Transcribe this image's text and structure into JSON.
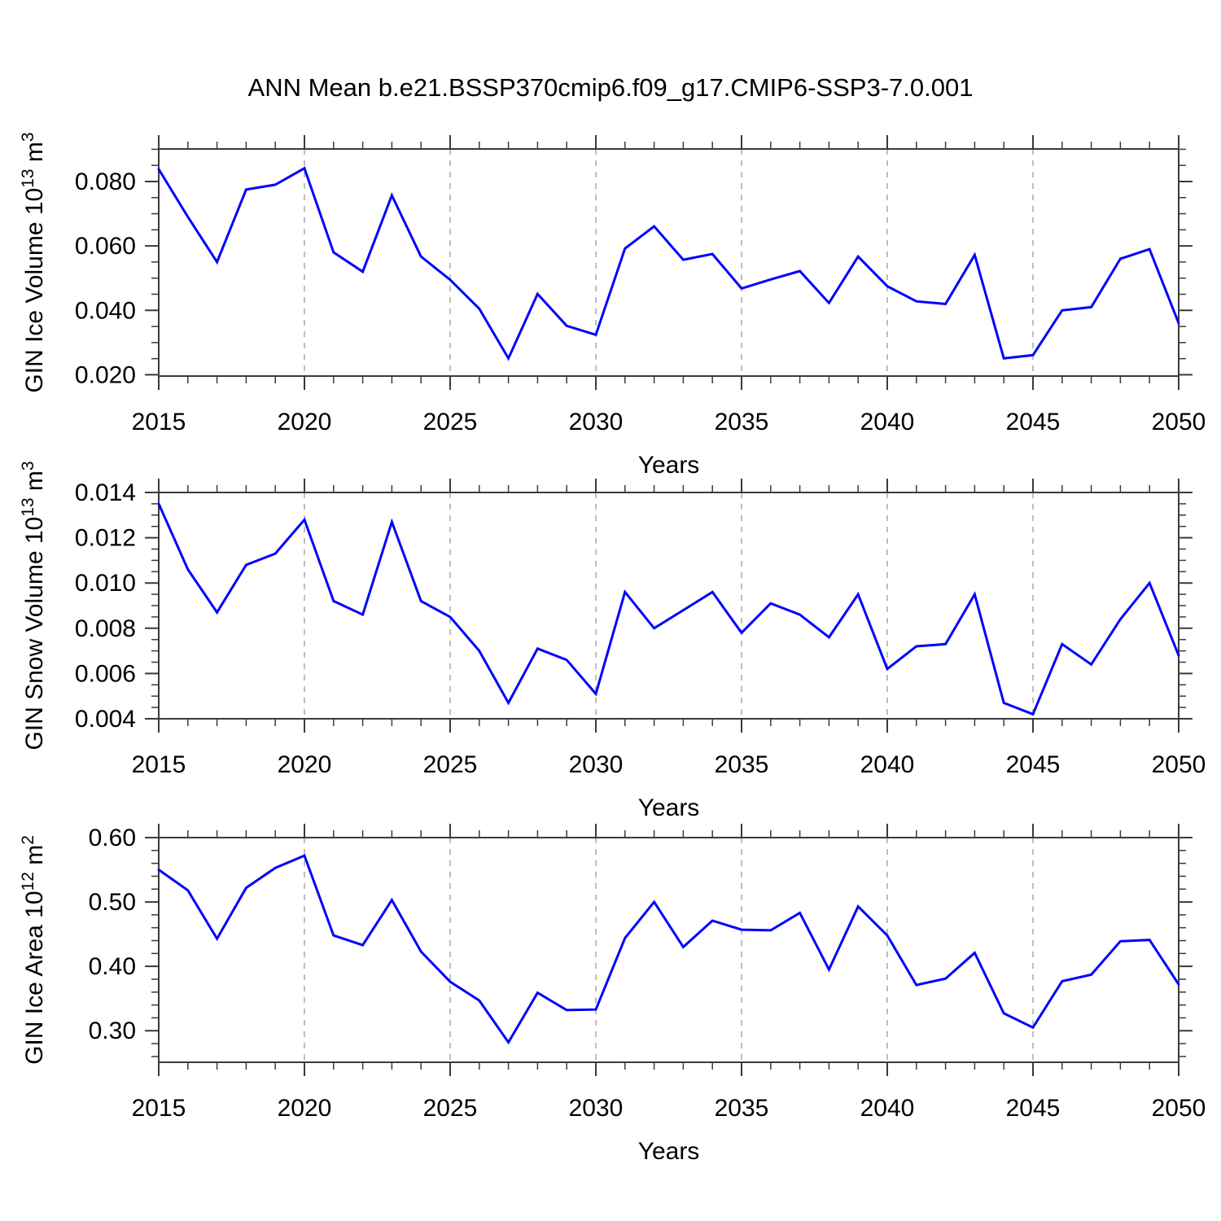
{
  "title": "ANN Mean b.e21.BSSP370cmip6.f09_g17.CMIP6-SSP3-7.0.001",
  "colors": {
    "line": "#0000ff",
    "frame": "#3a3a3a",
    "grid": "#a8a8a8",
    "text": "#000000",
    "background": "#ffffff"
  },
  "chart_data": [
    {
      "type": "line",
      "name": "GIN Ice Volume",
      "ylabel": {
        "prefix": "GIN Ice Volume 10",
        "exponent": "13",
        "unit": " m",
        "unit_exponent": "3"
      },
      "xlabel": "Years",
      "x": [
        2015,
        2016,
        2017,
        2018,
        2019,
        2020,
        2021,
        2022,
        2023,
        2024,
        2025,
        2026,
        2027,
        2028,
        2029,
        2030,
        2031,
        2032,
        2033,
        2034,
        2035,
        2036,
        2037,
        2038,
        2039,
        2040,
        2041,
        2042,
        2043,
        2044,
        2045,
        2046,
        2047,
        2048,
        2049,
        2050
      ],
      "values": [
        0.0838,
        0.069,
        0.055,
        0.0775,
        0.079,
        0.0841,
        0.058,
        0.052,
        0.0757,
        0.0567,
        0.0495,
        0.0405,
        0.0251,
        0.0451,
        0.0352,
        0.0324,
        0.0592,
        0.0661,
        0.0557,
        0.0575,
        0.0468,
        0.0496,
        0.0522,
        0.0423,
        0.0567,
        0.0475,
        0.0428,
        0.042,
        0.0572,
        0.0251,
        0.0261,
        0.04,
        0.041,
        0.056,
        0.059,
        0.036
      ],
      "xlim": [
        2015,
        2050
      ],
      "ylim": [
        0.0196,
        0.0901
      ],
      "xticks": [
        2015,
        2020,
        2025,
        2030,
        2035,
        2040,
        2045,
        2050
      ],
      "xtick_labels": [
        "2015",
        "2020",
        "2025",
        "2030",
        "2035",
        "2040",
        "2045",
        "2050"
      ],
      "xminor_step": 1,
      "yticks": [
        0.02,
        0.04,
        0.06,
        0.08
      ],
      "ytick_labels": [
        "0.020",
        "0.040",
        "0.060",
        "0.080"
      ],
      "yminor_step": 0.005,
      "grid_years": [
        2020,
        2025,
        2030,
        2035,
        2040,
        2045
      ],
      "grid_on": "vertical-dashed",
      "legend": "none"
    },
    {
      "type": "line",
      "name": "GIN Snow Volume",
      "ylabel": {
        "prefix": "GIN Snow Volume 10",
        "exponent": "13",
        "unit": " m",
        "unit_exponent": "3"
      },
      "xlabel": "Years",
      "x": [
        2015,
        2016,
        2017,
        2018,
        2019,
        2020,
        2021,
        2022,
        2023,
        2024,
        2025,
        2026,
        2027,
        2028,
        2029,
        2030,
        2031,
        2032,
        2033,
        2034,
        2035,
        2036,
        2037,
        2038,
        2039,
        2040,
        2041,
        2042,
        2043,
        2044,
        2045,
        2046,
        2047,
        2048,
        2049,
        2050
      ],
      "values": [
        0.0135,
        0.0106,
        0.0087,
        0.0108,
        0.0113,
        0.0128,
        0.0092,
        0.0086,
        0.0127,
        0.0092,
        0.0085,
        0.007,
        0.0047,
        0.0071,
        0.0066,
        0.0051,
        0.0096,
        0.008,
        0.0088,
        0.0096,
        0.0078,
        0.0091,
        0.0086,
        0.0076,
        0.0095,
        0.0062,
        0.0072,
        0.0073,
        0.0095,
        0.0047,
        0.0042,
        0.0073,
        0.0064,
        0.0084,
        0.01,
        0.0068
      ],
      "xlim": [
        2015,
        2050
      ],
      "ylim": [
        0.004,
        0.014
      ],
      "xticks": [
        2015,
        2020,
        2025,
        2030,
        2035,
        2040,
        2045,
        2050
      ],
      "xtick_labels": [
        "2015",
        "2020",
        "2025",
        "2030",
        "2035",
        "2040",
        "2045",
        "2050"
      ],
      "xminor_step": 1,
      "yticks": [
        0.004,
        0.006,
        0.008,
        0.01,
        0.012,
        0.014
      ],
      "ytick_labels": [
        "0.004",
        "0.006",
        "0.008",
        "0.010",
        "0.012",
        "0.014"
      ],
      "yminor_step": 0.0005,
      "grid_years": [
        2020,
        2025,
        2030,
        2035,
        2040,
        2045
      ],
      "grid_on": "vertical-dashed",
      "legend": "none"
    },
    {
      "type": "line",
      "name": "GIN Ice Area",
      "ylabel": {
        "prefix": "GIN Ice Area 10",
        "exponent": "12",
        "unit": " m",
        "unit_exponent": "2"
      },
      "xlabel": "Years",
      "x": [
        2015,
        2016,
        2017,
        2018,
        2019,
        2020,
        2021,
        2022,
        2023,
        2024,
        2025,
        2026,
        2027,
        2028,
        2029,
        2030,
        2031,
        2032,
        2033,
        2034,
        2035,
        2036,
        2037,
        2038,
        2039,
        2040,
        2041,
        2042,
        2043,
        2044,
        2045,
        2046,
        2047,
        2048,
        2049,
        2050
      ],
      "values": [
        0.55,
        0.518,
        0.443,
        0.522,
        0.553,
        0.572,
        0.448,
        0.433,
        0.503,
        0.423,
        0.376,
        0.347,
        0.282,
        0.359,
        0.332,
        0.333,
        0.444,
        0.5,
        0.43,
        0.471,
        0.457,
        0.456,
        0.483,
        0.395,
        0.493,
        0.448,
        0.371,
        0.381,
        0.421,
        0.327,
        0.305,
        0.377,
        0.387,
        0.439,
        0.441,
        0.372
      ],
      "xlim": [
        2015,
        2050
      ],
      "ylim": [
        0.251,
        0.6
      ],
      "xticks": [
        2015,
        2020,
        2025,
        2030,
        2035,
        2040,
        2045,
        2050
      ],
      "xtick_labels": [
        "2015",
        "2020",
        "2025",
        "2030",
        "2035",
        "2040",
        "2045",
        "2050"
      ],
      "xminor_step": 1,
      "yticks": [
        0.3,
        0.4,
        0.5,
        0.6
      ],
      "ytick_labels": [
        "0.30",
        "0.40",
        "0.50",
        "0.60"
      ],
      "yminor_step": 0.02,
      "grid_years": [
        2020,
        2025,
        2030,
        2035,
        2040,
        2045
      ],
      "grid_on": "vertical-dashed",
      "legend": "none"
    }
  ]
}
